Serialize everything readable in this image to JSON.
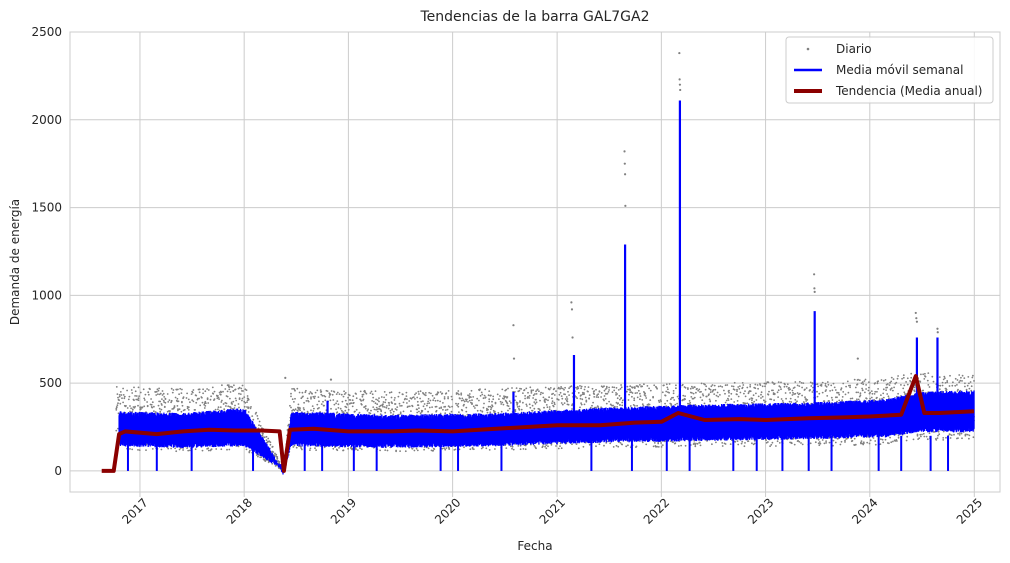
{
  "chart_data": {
    "type": "line",
    "title": "Tendencias de la barra GAL7GA2",
    "xlabel": "Fecha",
    "ylabel": "Demanda de energía",
    "ylim": [
      -120,
      2500
    ],
    "xlim": [
      "2016-05-01",
      "2025-04-01"
    ],
    "yticks": [
      0,
      500,
      1000,
      1500,
      2000,
      2500
    ],
    "ytick_labels": [
      "0",
      "500",
      "1000",
      "1500",
      "2000",
      "2500"
    ],
    "xticks": [
      "2017-01-01",
      "2018-01-01",
      "2019-01-01",
      "2020-01-01",
      "2021-01-01",
      "2022-01-01",
      "2023-01-01",
      "2024-01-01",
      "2025-01-01"
    ],
    "xtick_labels": [
      "2017",
      "2018",
      "2019",
      "2020",
      "2021",
      "2022",
      "2023",
      "2024",
      "2025"
    ],
    "grid": true,
    "legend_position": "top-right",
    "series": [
      {
        "name": "Diario",
        "kind": "scatter",
        "color": "#808080",
        "band_x": [
          "2016-10-10",
          "2017-06-01",
          "2018-01-01",
          "2018-05-20",
          "2018-06-15",
          "2019-06-01",
          "2020-06-01",
          "2021-06-01",
          "2022-06-01",
          "2023-06-01",
          "2024-03-01",
          "2024-06-15",
          "2024-12-31"
        ],
        "band_low": [
          120,
          110,
          120,
          0,
          120,
          110,
          120,
          130,
          140,
          140,
          150,
          180,
          170
        ],
        "band_high": [
          480,
          470,
          500,
          0,
          480,
          450,
          470,
          490,
          500,
          510,
          530,
          560,
          550
        ],
        "spikes": [
          {
            "x": "2018-05-25",
            "y": 530
          },
          {
            "x": "2018-11-01",
            "y": 520
          },
          {
            "x": "2020-08-01",
            "y": 830
          },
          {
            "x": "2020-08-03",
            "y": 640
          },
          {
            "x": "2021-02-20",
            "y": 960
          },
          {
            "x": "2021-02-22",
            "y": 920
          },
          {
            "x": "2021-02-24",
            "y": 760
          },
          {
            "x": "2021-08-25",
            "y": 1820
          },
          {
            "x": "2021-08-26",
            "y": 1750
          },
          {
            "x": "2021-08-27",
            "y": 1690
          },
          {
            "x": "2021-08-28",
            "y": 1510
          },
          {
            "x": "2022-03-05",
            "y": 2380
          },
          {
            "x": "2022-03-06",
            "y": 2230
          },
          {
            "x": "2022-03-07",
            "y": 2200
          },
          {
            "x": "2022-03-08",
            "y": 2170
          },
          {
            "x": "2023-06-20",
            "y": 1120
          },
          {
            "x": "2023-06-21",
            "y": 1040
          },
          {
            "x": "2023-06-22",
            "y": 1020
          },
          {
            "x": "2024-06-10",
            "y": 900
          },
          {
            "x": "2024-06-12",
            "y": 870
          },
          {
            "x": "2024-06-14",
            "y": 850
          },
          {
            "x": "2024-08-25",
            "y": 810
          },
          {
            "x": "2024-08-26",
            "y": 790
          },
          {
            "x": "2023-11-20",
            "y": 640
          }
        ]
      },
      {
        "name": "Media móvil semanal",
        "kind": "line",
        "color": "#0000ff",
        "band_x": [
          "2016-10-20",
          "2017-06-01",
          "2018-01-01",
          "2018-05-20",
          "2018-06-15",
          "2019-06-01",
          "2020-06-01",
          "2021-06-01",
          "2022-06-01",
          "2023-06-01",
          "2024-03-01",
          "2024-06-15",
          "2024-12-31"
        ],
        "band_low": [
          140,
          130,
          140,
          0,
          140,
          130,
          140,
          160,
          170,
          180,
          190,
          220,
          220
        ],
        "band_high": [
          340,
          330,
          360,
          0,
          340,
          320,
          330,
          360,
          380,
          390,
          410,
          450,
          460
        ],
        "spikes": [
          {
            "x": "2021-03-01",
            "y": 660
          },
          {
            "x": "2021-08-27",
            "y": 1290
          },
          {
            "x": "2022-03-07",
            "y": 2110
          },
          {
            "x": "2023-06-22",
            "y": 910
          },
          {
            "x": "2024-06-14",
            "y": 760
          },
          {
            "x": "2024-08-25",
            "y": 760
          },
          {
            "x": "2020-08-01",
            "y": 450
          },
          {
            "x": "2018-10-20",
            "y": 400
          }
        ],
        "drops": [
          "2016-11-20",
          "2017-03-01",
          "2017-07-01",
          "2018-02-01",
          "2018-08-01",
          "2018-10-01",
          "2019-01-20",
          "2019-04-10",
          "2019-11-20",
          "2020-01-20",
          "2020-06-20",
          "2021-05-01",
          "2021-09-20",
          "2022-01-20",
          "2022-04-10",
          "2022-09-10",
          "2022-12-01",
          "2023-03-01",
          "2023-06-01",
          "2023-08-20",
          "2024-02-01",
          "2024-04-20",
          "2024-08-01",
          "2024-10-01"
        ]
      },
      {
        "name": "Tendencia (Media anual)",
        "kind": "line",
        "color": "#8b0000",
        "x": [
          "2016-08-20",
          "2016-10-01",
          "2016-10-20",
          "2016-11-10",
          "2017-03-01",
          "2017-06-01",
          "2017-09-01",
          "2017-12-01",
          "2018-03-01",
          "2018-05-05",
          "2018-05-20",
          "2018-06-10",
          "2018-09-01",
          "2019-01-01",
          "2019-06-01",
          "2019-09-01",
          "2020-01-01",
          "2020-06-01",
          "2021-01-01",
          "2021-06-01",
          "2021-10-01",
          "2022-01-01",
          "2022-03-01",
          "2022-06-01",
          "2022-10-01",
          "2023-01-01",
          "2023-06-01",
          "2023-10-01",
          "2024-01-01",
          "2024-04-20",
          "2024-06-10",
          "2024-07-10",
          "2024-09-01",
          "2024-12-31"
        ],
        "y": [
          0,
          0,
          210,
          225,
          210,
          225,
          235,
          230,
          230,
          225,
          0,
          235,
          240,
          225,
          225,
          230,
          225,
          240,
          260,
          260,
          275,
          280,
          330,
          290,
          295,
          290,
          300,
          305,
          310,
          320,
          540,
          330,
          330,
          340
        ]
      }
    ]
  }
}
